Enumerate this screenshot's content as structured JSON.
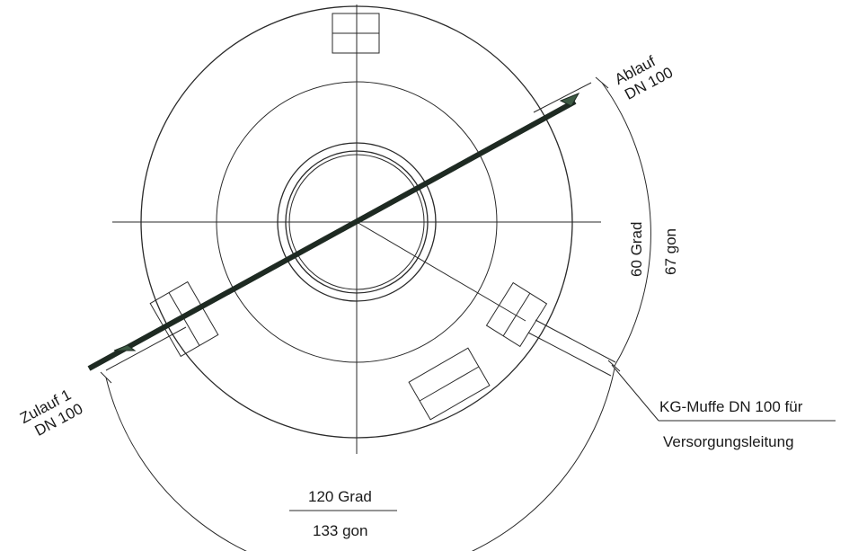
{
  "labels": {
    "outlet_line1": "Ablauf",
    "outlet_line2": "DN 100",
    "inlet_line1": "Zulauf 1",
    "inlet_line2": "DN 100",
    "angle_right_deg": "60 Grad",
    "angle_right_gon": "67 gon",
    "angle_bottom_deg": "120 Grad",
    "angle_bottom_gon": "133 gon",
    "socket_line1": "KG-Muffe DN 100 für",
    "socket_line2": "Versorgungsleitung"
  },
  "colors": {
    "line": "#2a2a2a",
    "pipe": "#1e2a22",
    "arrow_head": "#3d5a44"
  }
}
